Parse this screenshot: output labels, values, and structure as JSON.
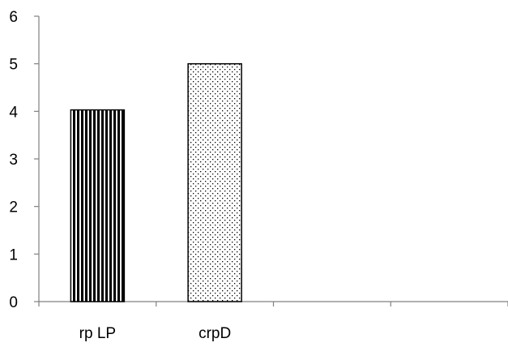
{
  "chart_data": {
    "type": "bar",
    "categories": [
      "rp LP",
      "crpD",
      "",
      ""
    ],
    "values": [
      4.03,
      5.0,
      null,
      null
    ],
    "ylim": [
      0,
      6
    ],
    "yticks": [
      0,
      1,
      2,
      3,
      4,
      5,
      6
    ],
    "grid": false,
    "legend": "none",
    "bar_patterns": [
      "vertical-stripes",
      "dots"
    ],
    "colors": {
      "bar_outline": "#000000",
      "axis": "#808080",
      "pattern_ink": "#000000",
      "background": "#ffffff"
    }
  }
}
